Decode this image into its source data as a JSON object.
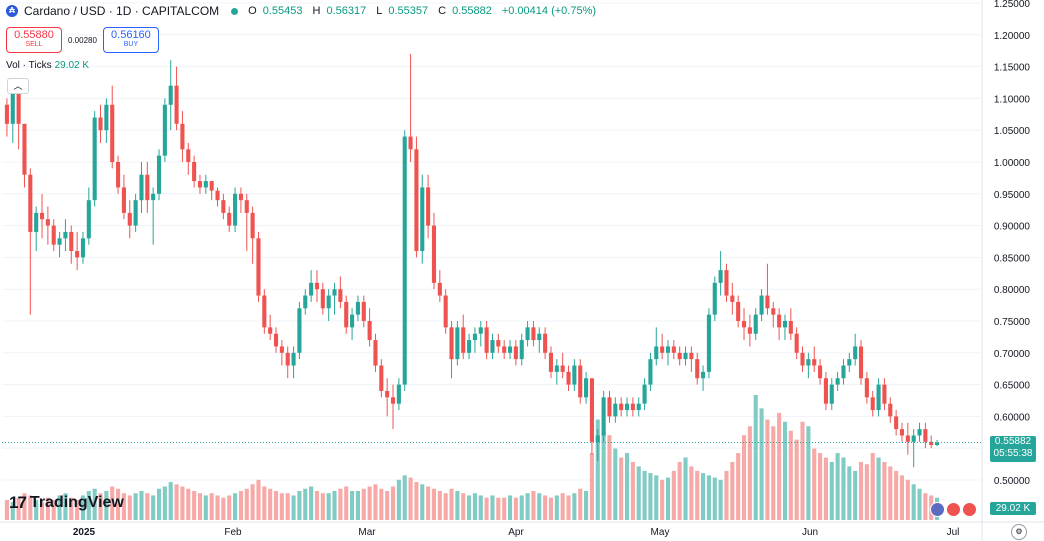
{
  "legend": {
    "title": "Cardano / USD · 1D · CAPITALCOM",
    "o_label": "O",
    "o": "0.55453",
    "h_label": "H",
    "h": "0.56317",
    "l_label": "L",
    "l": "0.55357",
    "c_label": "C",
    "c": "0.55882",
    "change": "+0.00414 (+0.75%)"
  },
  "trade": {
    "sell_price": "0.55880",
    "sell_label": "SELL",
    "spread": "0.00280",
    "buy_price": "0.56160",
    "buy_label": "BUY"
  },
  "volume_indicator": {
    "label": "Vol · Ticks",
    "value": "29.02 K"
  },
  "branding": {
    "name": "TradingView"
  },
  "price_tag": {
    "price": "0.55882",
    "countdown": "05:55:38"
  },
  "volume_tag": "29.02 K",
  "colors": {
    "up": "#26a69a",
    "down": "#ef5350",
    "vol_up": "#80cbc4",
    "vol_down": "#f7a9a7"
  },
  "chart_data": {
    "type": "candlestick",
    "y_axis_ticks": [
      "1.25000",
      "1.20000",
      "1.15000",
      "1.10000",
      "1.05000",
      "1.00000",
      "0.95000",
      "0.90000",
      "0.85000",
      "0.80000",
      "0.75000",
      "0.70000",
      "0.65000",
      "0.60000",
      "0.55000",
      "0.50000"
    ],
    "y_range": [
      0.495,
      1.255
    ],
    "x_axis_labels": [
      "2025",
      "Feb",
      "Mar",
      "Apr",
      "May",
      "Jun",
      "Jul"
    ],
    "candles": [
      [
        1.09,
        1.1,
        1.04,
        1.06
      ],
      [
        1.06,
        1.12,
        1.03,
        1.11
      ],
      [
        1.11,
        1.12,
        1.02,
        1.06
      ],
      [
        1.06,
        1.06,
        0.96,
        0.98
      ],
      [
        0.98,
        0.99,
        0.76,
        0.89
      ],
      [
        0.89,
        0.93,
        0.86,
        0.92
      ],
      [
        0.92,
        0.95,
        0.88,
        0.91
      ],
      [
        0.91,
        0.93,
        0.87,
        0.9
      ],
      [
        0.9,
        0.91,
        0.86,
        0.87
      ],
      [
        0.87,
        0.89,
        0.85,
        0.88
      ],
      [
        0.88,
        0.91,
        0.86,
        0.89
      ],
      [
        0.89,
        0.9,
        0.84,
        0.86
      ],
      [
        0.86,
        0.89,
        0.83,
        0.85
      ],
      [
        0.85,
        0.89,
        0.84,
        0.88
      ],
      [
        0.88,
        0.96,
        0.87,
        0.94
      ],
      [
        0.94,
        1.08,
        0.93,
        1.07
      ],
      [
        1.07,
        1.09,
        1.03,
        1.05
      ],
      [
        1.05,
        1.1,
        1.03,
        1.09
      ],
      [
        1.09,
        1.12,
        0.99,
        1.0
      ],
      [
        1.0,
        1.01,
        0.95,
        0.96
      ],
      [
        0.96,
        0.98,
        0.91,
        0.92
      ],
      [
        0.92,
        0.94,
        0.88,
        0.9
      ],
      [
        0.9,
        0.95,
        0.89,
        0.94
      ],
      [
        0.94,
        1.0,
        0.92,
        0.98
      ],
      [
        0.98,
        1.0,
        0.92,
        0.94
      ],
      [
        0.94,
        0.96,
        0.87,
        0.95
      ],
      [
        0.95,
        1.02,
        0.94,
        1.01
      ],
      [
        1.01,
        1.1,
        1.0,
        1.09
      ],
      [
        1.09,
        1.16,
        1.05,
        1.12
      ],
      [
        1.12,
        1.15,
        1.05,
        1.06
      ],
      [
        1.06,
        1.08,
        1.0,
        1.02
      ],
      [
        1.02,
        1.03,
        0.98,
        1.0
      ],
      [
        1.0,
        1.01,
        0.96,
        0.97
      ],
      [
        0.97,
        0.98,
        0.95,
        0.96
      ],
      [
        0.96,
        0.98,
        0.95,
        0.97
      ],
      [
        0.97,
        0.97,
        0.94,
        0.955
      ],
      [
        0.955,
        0.96,
        0.93,
        0.94
      ],
      [
        0.94,
        0.95,
        0.91,
        0.92
      ],
      [
        0.92,
        0.93,
        0.89,
        0.9
      ],
      [
        0.9,
        0.96,
        0.89,
        0.95
      ],
      [
        0.95,
        0.96,
        0.92,
        0.94
      ],
      [
        0.94,
        0.95,
        0.86,
        0.92
      ],
      [
        0.92,
        0.93,
        0.84,
        0.88
      ],
      [
        0.88,
        0.89,
        0.78,
        0.79
      ],
      [
        0.79,
        0.8,
        0.73,
        0.74
      ],
      [
        0.74,
        0.76,
        0.72,
        0.73
      ],
      [
        0.73,
        0.74,
        0.7,
        0.71
      ],
      [
        0.71,
        0.72,
        0.68,
        0.7
      ],
      [
        0.7,
        0.71,
        0.66,
        0.68
      ],
      [
        0.68,
        0.71,
        0.66,
        0.7
      ],
      [
        0.7,
        0.78,
        0.69,
        0.77
      ],
      [
        0.77,
        0.8,
        0.76,
        0.79
      ],
      [
        0.79,
        0.83,
        0.78,
        0.81
      ],
      [
        0.81,
        0.83,
        0.78,
        0.8
      ],
      [
        0.8,
        0.81,
        0.76,
        0.77
      ],
      [
        0.77,
        0.8,
        0.75,
        0.79
      ],
      [
        0.79,
        0.81,
        0.76,
        0.8
      ],
      [
        0.8,
        0.82,
        0.77,
        0.78
      ],
      [
        0.78,
        0.79,
        0.73,
        0.74
      ],
      [
        0.74,
        0.77,
        0.72,
        0.76
      ],
      [
        0.76,
        0.79,
        0.75,
        0.78
      ],
      [
        0.78,
        0.79,
        0.74,
        0.75
      ],
      [
        0.75,
        0.77,
        0.71,
        0.72
      ],
      [
        0.72,
        0.73,
        0.67,
        0.68
      ],
      [
        0.68,
        0.69,
        0.63,
        0.64
      ],
      [
        0.64,
        0.66,
        0.6,
        0.63
      ],
      [
        0.63,
        0.65,
        0.58,
        0.62
      ],
      [
        0.62,
        0.66,
        0.61,
        0.65
      ],
      [
        0.65,
        1.05,
        0.64,
        1.04
      ],
      [
        1.04,
        1.17,
        1.0,
        1.02
      ],
      [
        1.02,
        1.04,
        0.85,
        0.86
      ],
      [
        0.86,
        0.98,
        0.84,
        0.96
      ],
      [
        0.96,
        0.98,
        0.88,
        0.9
      ],
      [
        0.9,
        0.92,
        0.8,
        0.81
      ],
      [
        0.81,
        0.83,
        0.78,
        0.79
      ],
      [
        0.79,
        0.8,
        0.73,
        0.74
      ],
      [
        0.74,
        0.75,
        0.66,
        0.69
      ],
      [
        0.69,
        0.75,
        0.68,
        0.74
      ],
      [
        0.74,
        0.76,
        0.69,
        0.7
      ],
      [
        0.7,
        0.73,
        0.69,
        0.72
      ],
      [
        0.72,
        0.74,
        0.7,
        0.73
      ],
      [
        0.73,
        0.75,
        0.71,
        0.74
      ],
      [
        0.74,
        0.75,
        0.69,
        0.7
      ],
      [
        0.7,
        0.73,
        0.69,
        0.72
      ],
      [
        0.72,
        0.73,
        0.7,
        0.71
      ],
      [
        0.71,
        0.72,
        0.69,
        0.7
      ],
      [
        0.7,
        0.72,
        0.69,
        0.71
      ],
      [
        0.71,
        0.72,
        0.68,
        0.69
      ],
      [
        0.69,
        0.73,
        0.68,
        0.72
      ],
      [
        0.72,
        0.75,
        0.71,
        0.74
      ],
      [
        0.74,
        0.75,
        0.71,
        0.72
      ],
      [
        0.72,
        0.74,
        0.7,
        0.73
      ],
      [
        0.73,
        0.74,
        0.69,
        0.7
      ],
      [
        0.7,
        0.71,
        0.66,
        0.67
      ],
      [
        0.67,
        0.69,
        0.65,
        0.68
      ],
      [
        0.68,
        0.7,
        0.66,
        0.67
      ],
      [
        0.67,
        0.68,
        0.64,
        0.65
      ],
      [
        0.65,
        0.69,
        0.64,
        0.68
      ],
      [
        0.68,
        0.69,
        0.62,
        0.63
      ],
      [
        0.63,
        0.67,
        0.62,
        0.66
      ],
      [
        0.66,
        0.66,
        0.54,
        0.56
      ],
      [
        0.56,
        0.58,
        0.53,
        0.57
      ],
      [
        0.57,
        0.64,
        0.56,
        0.63
      ],
      [
        0.63,
        0.64,
        0.59,
        0.6
      ],
      [
        0.6,
        0.63,
        0.59,
        0.62
      ],
      [
        0.62,
        0.63,
        0.6,
        0.61
      ],
      [
        0.61,
        0.63,
        0.6,
        0.62
      ],
      [
        0.62,
        0.63,
        0.6,
        0.61
      ],
      [
        0.61,
        0.63,
        0.6,
        0.62
      ],
      [
        0.62,
        0.66,
        0.61,
        0.65
      ],
      [
        0.65,
        0.7,
        0.64,
        0.69
      ],
      [
        0.69,
        0.74,
        0.68,
        0.71
      ],
      [
        0.71,
        0.73,
        0.69,
        0.7
      ],
      [
        0.7,
        0.72,
        0.68,
        0.71
      ],
      [
        0.71,
        0.72,
        0.69,
        0.7
      ],
      [
        0.7,
        0.71,
        0.68,
        0.69
      ],
      [
        0.69,
        0.71,
        0.68,
        0.7
      ],
      [
        0.7,
        0.71,
        0.67,
        0.69
      ],
      [
        0.69,
        0.7,
        0.65,
        0.66
      ],
      [
        0.66,
        0.68,
        0.64,
        0.67
      ],
      [
        0.67,
        0.77,
        0.66,
        0.76
      ],
      [
        0.76,
        0.82,
        0.75,
        0.81
      ],
      [
        0.81,
        0.86,
        0.79,
        0.83
      ],
      [
        0.83,
        0.84,
        0.78,
        0.79
      ],
      [
        0.79,
        0.81,
        0.76,
        0.78
      ],
      [
        0.78,
        0.79,
        0.74,
        0.75
      ],
      [
        0.75,
        0.77,
        0.72,
        0.74
      ],
      [
        0.74,
        0.76,
        0.71,
        0.73
      ],
      [
        0.73,
        0.77,
        0.72,
        0.76
      ],
      [
        0.76,
        0.8,
        0.75,
        0.79
      ],
      [
        0.79,
        0.84,
        0.76,
        0.77
      ],
      [
        0.77,
        0.78,
        0.74,
        0.76
      ],
      [
        0.76,
        0.77,
        0.72,
        0.74
      ],
      [
        0.74,
        0.76,
        0.72,
        0.75
      ],
      [
        0.75,
        0.77,
        0.72,
        0.73
      ],
      [
        0.73,
        0.74,
        0.69,
        0.7
      ],
      [
        0.7,
        0.71,
        0.67,
        0.68
      ],
      [
        0.68,
        0.7,
        0.66,
        0.69
      ],
      [
        0.69,
        0.71,
        0.67,
        0.68
      ],
      [
        0.68,
        0.69,
        0.65,
        0.66
      ],
      [
        0.66,
        0.67,
        0.61,
        0.62
      ],
      [
        0.62,
        0.66,
        0.61,
        0.65
      ],
      [
        0.65,
        0.67,
        0.64,
        0.66
      ],
      [
        0.66,
        0.69,
        0.65,
        0.68
      ],
      [
        0.68,
        0.7,
        0.67,
        0.69
      ],
      [
        0.69,
        0.73,
        0.68,
        0.71
      ],
      [
        0.71,
        0.72,
        0.65,
        0.66
      ],
      [
        0.66,
        0.67,
        0.62,
        0.63
      ],
      [
        0.63,
        0.64,
        0.6,
        0.61
      ],
      [
        0.61,
        0.66,
        0.6,
        0.65
      ],
      [
        0.65,
        0.66,
        0.61,
        0.62
      ],
      [
        0.62,
        0.63,
        0.59,
        0.6
      ],
      [
        0.6,
        0.61,
        0.57,
        0.58
      ],
      [
        0.58,
        0.59,
        0.56,
        0.57
      ],
      [
        0.57,
        0.59,
        0.54,
        0.56
      ],
      [
        0.56,
        0.58,
        0.52,
        0.57
      ],
      [
        0.57,
        0.59,
        0.56,
        0.58
      ],
      [
        0.58,
        0.59,
        0.55,
        0.56
      ],
      [
        0.56,
        0.57,
        0.55,
        0.555
      ],
      [
        0.555,
        0.563,
        0.553,
        0.559
      ]
    ],
    "volumes": [
      9,
      8,
      10,
      12,
      11,
      9,
      8,
      10,
      9,
      11,
      12,
      10,
      9,
      11,
      13,
      14,
      12,
      13,
      15,
      14,
      12,
      11,
      12,
      13,
      12,
      11,
      14,
      15,
      17,
      16,
      15,
      14,
      13,
      12,
      11,
      12,
      11,
      10,
      11,
      12,
      13,
      14,
      16,
      18,
      15,
      14,
      13,
      12,
      12,
      11,
      13,
      14,
      15,
      13,
      12,
      12,
      13,
      14,
      15,
      13,
      13,
      14,
      15,
      16,
      14,
      13,
      15,
      18,
      20,
      19,
      17,
      16,
      15,
      14,
      13,
      12,
      14,
      13,
      12,
      11,
      12,
      11,
      10,
      11,
      10,
      10,
      11,
      10,
      11,
      12,
      13,
      12,
      11,
      10,
      11,
      12,
      11,
      12,
      14,
      13,
      30,
      45,
      40,
      38,
      32,
      28,
      30,
      26,
      24,
      22,
      21,
      20,
      18,
      19,
      22,
      26,
      28,
      24,
      22,
      21,
      20,
      19,
      18,
      22,
      26,
      30,
      38,
      42,
      56,
      50,
      45,
      42,
      48,
      44,
      40,
      36,
      44,
      42,
      32,
      30,
      28,
      26,
      30,
      28,
      24,
      22,
      26,
      25,
      30,
      28,
      26,
      24,
      22,
      20,
      18,
      16,
      14,
      12,
      11,
      10
    ]
  }
}
